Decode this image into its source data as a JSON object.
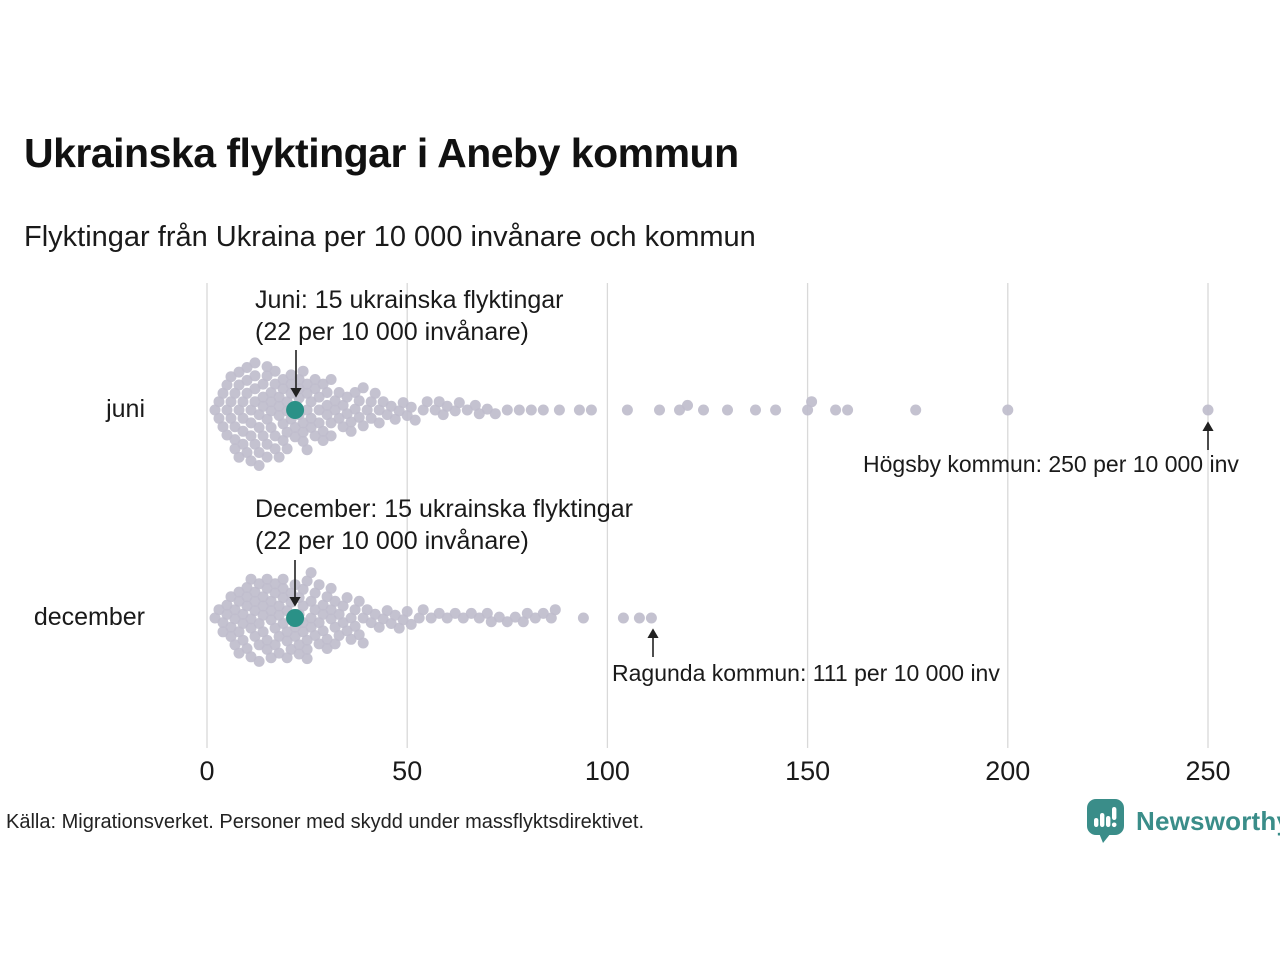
{
  "header": {
    "title": "Ukrainska flyktingar i Aneby kommun",
    "subtitle": "Flyktingar från Ukraina per 10 000 invånare och kommun"
  },
  "annotations": {
    "juni_line1": "Juni: 15 ukrainska flyktingar",
    "juni_line2": "(22 per 10 000 invånare)",
    "december_line1": "December: 15 ukrainska flyktingar",
    "december_line2": "(22 per 10 000 invånare)",
    "hogsby": "Högsby kommun: 250 per 10 000 inv",
    "ragunda": "Ragunda kommun: 111 per 10 000 inv"
  },
  "footer": {
    "source": "Källa: Migrationsverket. Personer med skydd under massflyktsdirektivet.",
    "brand": "Newsworthy"
  },
  "colors": {
    "dot": "#bfbdcc",
    "highlight": "#2a9187",
    "brand": "#3a8d89",
    "grid": "#d9d9d9",
    "text": "#1a1a1a"
  },
  "chart_data": {
    "type": "scatter",
    "variant": "beeswarm",
    "title": "Ukrainska flyktingar i Aneby kommun",
    "subtitle": "Flyktingar från Ukraina per 10 000 invånare och kommun",
    "xlabel": "Flyktingar från Ukraina per 10 000 invånare",
    "xlim": [
      0,
      260
    ],
    "x_ticks": [
      0,
      50,
      100,
      150,
      200,
      250
    ],
    "grid": "vertical-only",
    "highlight_value": 22,
    "highlighted_municipality": "Aneby kommun",
    "callouts": [
      {
        "row": "juni",
        "value": 250,
        "label": "Högsby kommun: 250 per 10 000 inv"
      },
      {
        "row": "december",
        "value": 111,
        "label": "Ragunda kommun: 111 per 10 000 inv"
      },
      {
        "row": "juni",
        "value": 22,
        "label": "Juni: 15 ukrainska flyktingar (22 per 10 000 invånare)"
      },
      {
        "row": "december",
        "value": 22,
        "label": "December: 15 ukrainska flyktingar (22 per 10 000 invånare)"
      }
    ],
    "rows": [
      {
        "label": "juni",
        "highlight": {
          "value": 22,
          "color": "#2a9187"
        },
        "values": [
          2,
          3,
          3,
          4,
          4,
          5,
          5,
          5,
          6,
          6,
          6,
          7,
          7,
          7,
          7,
          8,
          8,
          8,
          8,
          9,
          9,
          9,
          9,
          10,
          10,
          10,
          10,
          11,
          11,
          11,
          11,
          12,
          12,
          12,
          12,
          12,
          13,
          13,
          13,
          13,
          14,
          14,
          14,
          14,
          15,
          15,
          15,
          15,
          15,
          16,
          16,
          16,
          16,
          17,
          17,
          17,
          17,
          18,
          18,
          18,
          18,
          19,
          19,
          19,
          19,
          20,
          20,
          20,
          20,
          21,
          21,
          21,
          21,
          22,
          22,
          22,
          23,
          23,
          23,
          23,
          24,
          24,
          24,
          24,
          25,
          25,
          25,
          25,
          26,
          26,
          26,
          27,
          27,
          27,
          28,
          28,
          28,
          29,
          29,
          29,
          30,
          30,
          30,
          31,
          31,
          31,
          32,
          32,
          33,
          33,
          34,
          34,
          35,
          35,
          36,
          36,
          37,
          37,
          38,
          38,
          39,
          39,
          40,
          41,
          41,
          42,
          43,
          43,
          44,
          45,
          46,
          47,
          48,
          49,
          50,
          51,
          52,
          54,
          55,
          57,
          58,
          59,
          60,
          62,
          63,
          65,
          67,
          68,
          70,
          72,
          75,
          78,
          81,
          84,
          88,
          93,
          96,
          105,
          113,
          118,
          120,
          124,
          130,
          137,
          142,
          150,
          151,
          157,
          160,
          177,
          200,
          250
        ]
      },
      {
        "label": "december",
        "highlight": {
          "value": 22,
          "color": "#2a9187"
        },
        "values": [
          2,
          3,
          4,
          4,
          5,
          5,
          6,
          6,
          6,
          7,
          7,
          7,
          8,
          8,
          8,
          8,
          9,
          9,
          9,
          10,
          10,
          10,
          10,
          11,
          11,
          11,
          11,
          12,
          12,
          12,
          12,
          13,
          13,
          13,
          13,
          14,
          14,
          14,
          14,
          15,
          15,
          15,
          15,
          16,
          16,
          16,
          16,
          17,
          17,
          17,
          17,
          18,
          18,
          18,
          18,
          19,
          19,
          19,
          19,
          20,
          20,
          20,
          20,
          21,
          21,
          21,
          21,
          22,
          22,
          22,
          23,
          23,
          23,
          23,
          24,
          24,
          24,
          24,
          25,
          25,
          25,
          25,
          26,
          26,
          26,
          26,
          27,
          27,
          27,
          28,
          28,
          28,
          29,
          29,
          29,
          30,
          30,
          30,
          31,
          31,
          31,
          32,
          32,
          32,
          33,
          33,
          34,
          34,
          35,
          35,
          36,
          36,
          37,
          37,
          38,
          38,
          39,
          39,
          40,
          41,
          42,
          43,
          44,
          45,
          46,
          47,
          48,
          49,
          50,
          51,
          53,
          54,
          56,
          58,
          60,
          62,
          64,
          66,
          68,
          70,
          71,
          73,
          75,
          77,
          79,
          80,
          82,
          84,
          86,
          87,
          94,
          104,
          108,
          111
        ]
      }
    ]
  }
}
